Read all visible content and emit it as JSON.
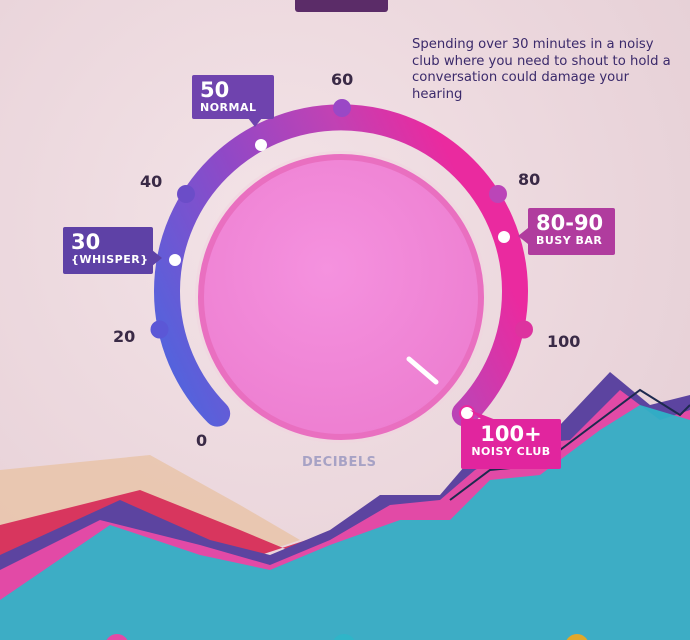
{
  "intro_text": "Spending over 30 minutes in a noisy club where you need to shout to hold a conversation could damage your hearing",
  "dial": {
    "axis_title": "DECIBELS",
    "ticks": [
      "0",
      "20",
      "40",
      "60",
      "80",
      "100"
    ],
    "needle_value": "100+"
  },
  "levels": [
    {
      "value": "30",
      "name": "{WHISPER}",
      "color": "#5e41a6"
    },
    {
      "value": "50",
      "name": "NORMAL",
      "color": "#6f43ae"
    },
    {
      "value": "80-90",
      "name": "BUSY BAR",
      "color": "#b03c9e"
    },
    {
      "value": "100+",
      "name": "NOISY CLUB",
      "color": "#e1259e"
    }
  ],
  "colors": {
    "arc_start": "#4a67e0",
    "arc_mid": "#9b4fcb",
    "arc_end": "#ea2a9f",
    "face": "#ef85d6",
    "face_ring": "#e96fc0"
  }
}
